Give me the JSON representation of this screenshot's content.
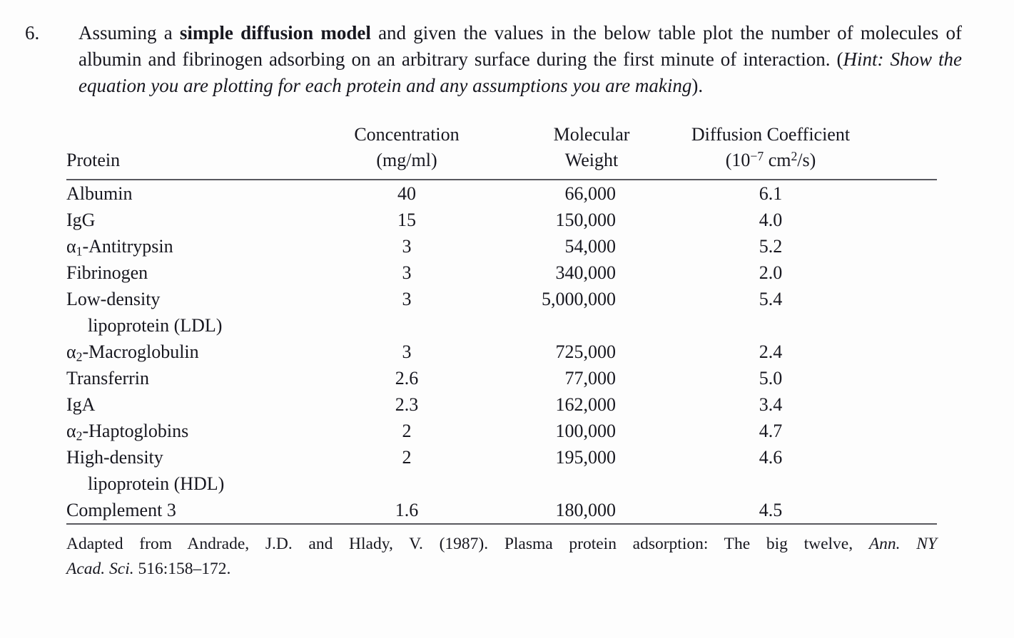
{
  "page": {
    "background_color": "#fdfdfd",
    "text_color": "#17171f",
    "rule_color": "#58585e"
  },
  "question": {
    "number": "6.",
    "part1": "Assuming a ",
    "bold": "simple diffusion model",
    "part2": " and given the values in the below table plot the number of molecules of albumin and fibrinogen adsorbing on an arbitrary surface during the first minute of interaction. (",
    "hint_italic": "Hint: Show the equation you are plotting for each protein and any assumptions you are making",
    "part3": ")."
  },
  "table": {
    "headers": {
      "protein": {
        "label": "Protein"
      },
      "concentration": {
        "line1": "Concentration",
        "line2": "(mg/ml)"
      },
      "molecular_weight": {
        "line1": "Molecular",
        "line2": "Weight"
      },
      "diffusion_coefficient": {
        "line1": "Diffusion Coefficient",
        "line2": "(10^{−7} cm^{2}/s)"
      }
    },
    "rows": [
      {
        "protein": "Albumin",
        "indent": false,
        "concentration": "40",
        "molecular_weight": "66,000",
        "diffusion_coefficient": "6.1"
      },
      {
        "protein": "IgG",
        "indent": false,
        "concentration": "15",
        "molecular_weight": "150,000",
        "diffusion_coefficient": "4.0"
      },
      {
        "protein": "α~1~-Antitrypsin",
        "indent": false,
        "concentration": "3",
        "molecular_weight": "54,000",
        "diffusion_coefficient": "5.2"
      },
      {
        "protein": "Fibrinogen",
        "indent": false,
        "concentration": "3",
        "molecular_weight": "340,000",
        "diffusion_coefficient": "2.0"
      },
      {
        "protein": "Low-density",
        "indent": false,
        "concentration": "3",
        "molecular_weight": "5,000,000",
        "diffusion_coefficient": "5.4"
      },
      {
        "protein": "lipoprotein (LDL)",
        "indent": true,
        "concentration": "",
        "molecular_weight": "",
        "diffusion_coefficient": ""
      },
      {
        "protein": "α~2~-Macroglobulin",
        "indent": false,
        "concentration": "3",
        "molecular_weight": "725,000",
        "diffusion_coefficient": "2.4"
      },
      {
        "protein": "Transferrin",
        "indent": false,
        "concentration": "2.6",
        "molecular_weight": "77,000",
        "diffusion_coefficient": "5.0"
      },
      {
        "protein": "IgA",
        "indent": false,
        "concentration": "2.3",
        "molecular_weight": "162,000",
        "diffusion_coefficient": "3.4"
      },
      {
        "protein": "α~2~-Haptoglobins",
        "indent": false,
        "concentration": "2",
        "molecular_weight": "100,000",
        "diffusion_coefficient": "4.7"
      },
      {
        "protein": "High-density",
        "indent": false,
        "concentration": "2",
        "molecular_weight": "195,000",
        "diffusion_coefficient": "4.6"
      },
      {
        "protein": "lipoprotein (HDL)",
        "indent": true,
        "concentration": "",
        "molecular_weight": "",
        "diffusion_coefficient": ""
      },
      {
        "protein": "Complement 3",
        "indent": false,
        "concentration": "1.6",
        "molecular_weight": "180,000",
        "diffusion_coefficient": "4.5"
      }
    ]
  },
  "footnote": {
    "line1_normal": "Adapted from Andrade, J.D. and Hlady, V. (1987). Plasma protein adsorption: The big twelve, ",
    "line1_italic": "Ann. NY",
    "line2_italic": "Acad. Sci.",
    "line2_normal": " 516:158–172."
  }
}
